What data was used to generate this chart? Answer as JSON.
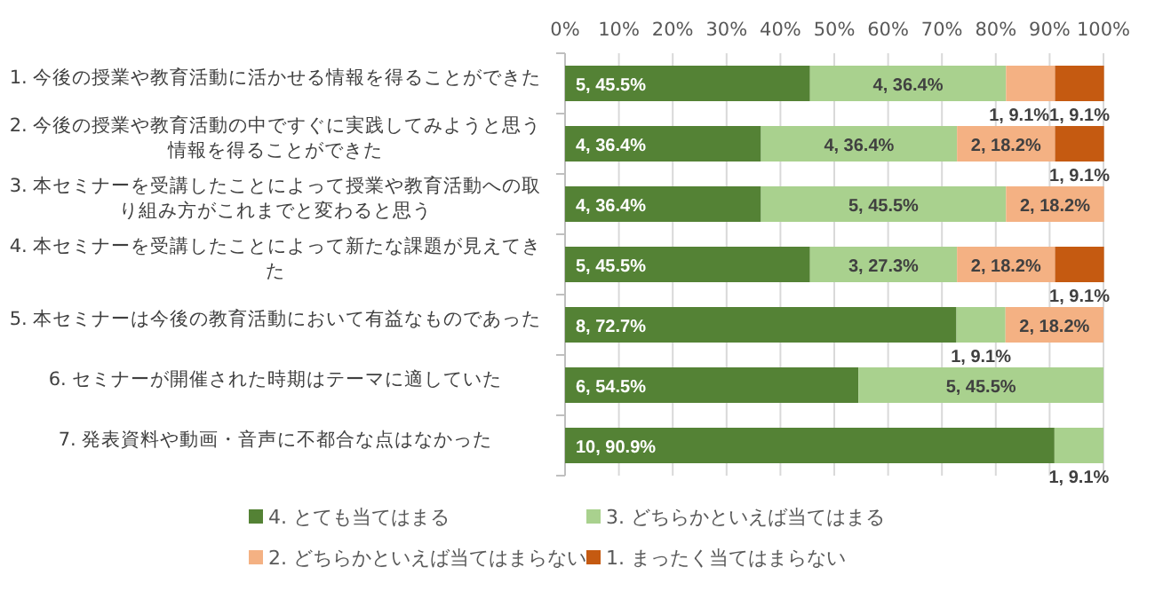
{
  "chart_data": {
    "type": "bar",
    "orientation": "horizontal",
    "stacked": true,
    "categories": [
      "1. 今後の授業や教育活動に活かせる情報を得ることができた",
      "2. 今後の授業や教育活動の中ですぐに実践してみようと思う情報を得ることができた",
      "3. 本セミナーを受講したことによって授業や教育活動への取り組み方がこれまでと変わると思う",
      "4. 本セミナーを受講したことによって新たな課題が見えてきた",
      "5. 本セミナーは今後の教育活動において有益なものであった",
      "6. セミナーが開催された時期はテーマに適していた",
      "7. 発表資料や動画・音声に不都合な点はなかった"
    ],
    "series": [
      {
        "name": "4. とても当てはまる",
        "color": "#548235",
        "values": [
          45.5,
          36.4,
          36.4,
          45.5,
          72.7,
          54.5,
          90.9
        ],
        "value_labels": [
          "5, 45.5%",
          "4, 36.4%",
          "4, 36.4%",
          "5, 45.5%",
          "8, 72.7%",
          "6, 54.5%",
          "10, 90.9%"
        ]
      },
      {
        "name": "3. どちらかといえば当てはまる",
        "color": "#a9d18e",
        "values": [
          36.4,
          36.4,
          45.5,
          27.3,
          9.1,
          45.5,
          9.1
        ],
        "value_labels": [
          "4, 36.4%",
          "4, 36.4%",
          "5, 45.5%",
          "3, 27.3%",
          "1, 9.1%",
          "5, 45.5%",
          "1, 9.1%"
        ]
      },
      {
        "name": "2. どちらかといえば当てはまらない",
        "color": "#f4b183",
        "values": [
          9.1,
          18.2,
          18.2,
          18.2,
          18.2,
          null,
          null
        ],
        "value_labels": [
          "1, 9.1%",
          "2, 18.2%",
          "2, 18.2%",
          "2, 18.2%",
          "2, 18.2%",
          null,
          null
        ]
      },
      {
        "name": "1. まったく当てはまらない",
        "color": "#c55a11",
        "values": [
          9.1,
          9.1,
          null,
          9.1,
          null,
          null,
          null
        ],
        "value_labels": [
          "1, 9.1%",
          "1, 9.1%",
          null,
          "1, 9.1%",
          null,
          null,
          null
        ]
      }
    ],
    "xlim": [
      0,
      100
    ],
    "xticks": [
      {
        "value": 0,
        "label": "0%"
      },
      {
        "value": 10,
        "label": "10%"
      },
      {
        "value": 20,
        "label": "20%"
      },
      {
        "value": 30,
        "label": "30%"
      },
      {
        "value": 40,
        "label": "40%"
      },
      {
        "value": 50,
        "label": "50%"
      },
      {
        "value": 60,
        "label": "60%"
      },
      {
        "value": 70,
        "label": "70%"
      },
      {
        "value": 80,
        "label": "80%"
      },
      {
        "value": 90,
        "label": "90%"
      },
      {
        "value": 100,
        "label": "100%"
      }
    ],
    "grid": "x",
    "legend": "bottom"
  }
}
